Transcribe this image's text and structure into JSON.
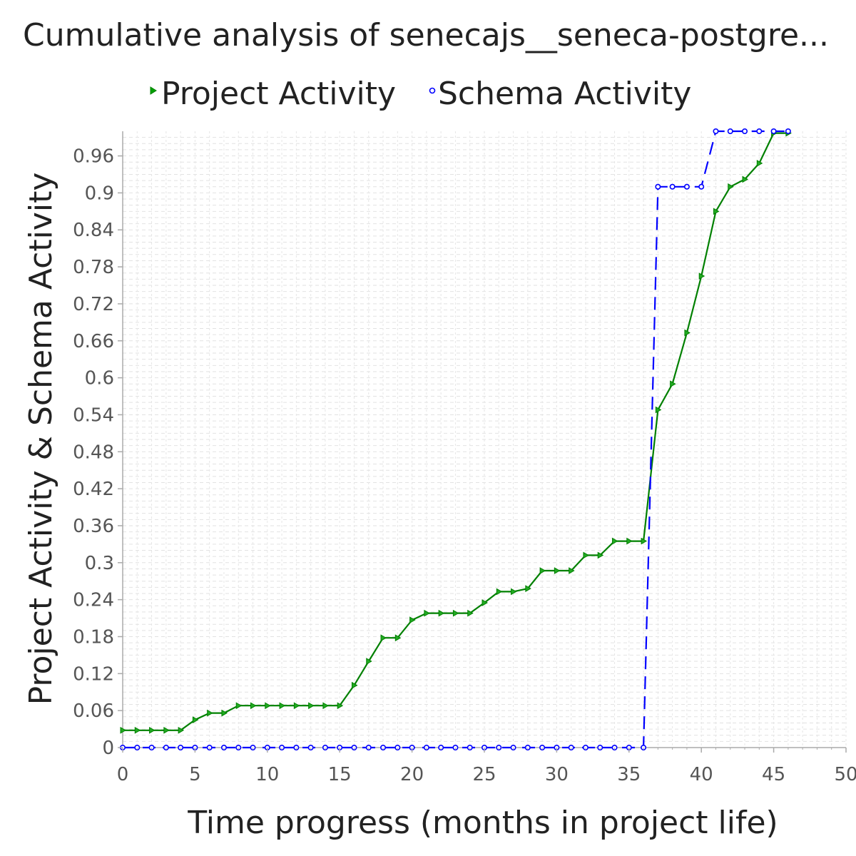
{
  "chart_data": {
    "type": "line",
    "title": "Cumulative analysis of senecajs__seneca-postgre...",
    "xlabel": "Time progress (months in project life)",
    "ylabel": "Project Activity & Schema Activity",
    "xlim": [
      0,
      50
    ],
    "ylim": [
      0,
      1
    ],
    "xticks": [
      0,
      5,
      10,
      15,
      20,
      25,
      30,
      35,
      40,
      45,
      50
    ],
    "yticks": [
      0,
      0.06,
      0.12,
      0.18,
      0.24,
      0.3,
      0.36,
      0.42,
      0.48,
      0.54,
      0.6,
      0.66,
      0.72,
      0.78,
      0.84,
      0.9,
      0.96
    ],
    "ytick_labels": [
      "0",
      "0.06",
      "0.12",
      "0.18",
      "0.24",
      "0.3",
      "0.36",
      "0.42",
      "0.48",
      "0.54",
      "0.6",
      "0.66",
      "0.72",
      "0.78",
      "0.84",
      "0.9",
      "0.96"
    ],
    "grid": true,
    "legend_position": "top",
    "x": [
      0,
      1,
      2,
      3,
      4,
      5,
      6,
      7,
      8,
      9,
      10,
      11,
      12,
      13,
      14,
      15,
      16,
      17,
      18,
      19,
      20,
      21,
      22,
      23,
      24,
      25,
      26,
      27,
      28,
      29,
      30,
      31,
      32,
      33,
      34,
      35,
      36,
      37,
      38,
      39,
      40,
      41,
      42,
      43,
      44,
      45,
      46
    ],
    "series": [
      {
        "name": "Project Activity",
        "color": "#008000",
        "marker": "triangle-right",
        "dash": "solid",
        "values": [
          0.028,
          0.028,
          0.028,
          0.028,
          0.028,
          0.045,
          0.056,
          0.056,
          0.068,
          0.068,
          0.068,
          0.068,
          0.068,
          0.068,
          0.068,
          0.068,
          0.101,
          0.14,
          0.178,
          0.178,
          0.207,
          0.218,
          0.218,
          0.218,
          0.218,
          0.235,
          0.253,
          0.253,
          0.258,
          0.287,
          0.287,
          0.287,
          0.312,
          0.312,
          0.335,
          0.335,
          0.335,
          0.548,
          0.59,
          0.673,
          0.765,
          0.87,
          0.91,
          0.922,
          0.948,
          0.997,
          0.997
        ]
      },
      {
        "name": "Schema Activity",
        "color": "#0000ff",
        "marker": "circle",
        "dash": "dashed",
        "values": [
          0,
          0,
          0,
          0,
          0,
          0,
          0,
          0,
          0,
          0,
          0,
          0,
          0,
          0,
          0,
          0,
          0,
          0,
          0,
          0,
          0,
          0,
          0,
          0,
          0,
          0,
          0,
          0,
          0,
          0,
          0,
          0,
          0,
          0,
          0,
          0,
          0,
          0.91,
          0.91,
          0.91,
          0.91,
          1.0,
          1.0,
          1.0,
          1.0,
          1.0,
          1.0
        ]
      }
    ]
  }
}
